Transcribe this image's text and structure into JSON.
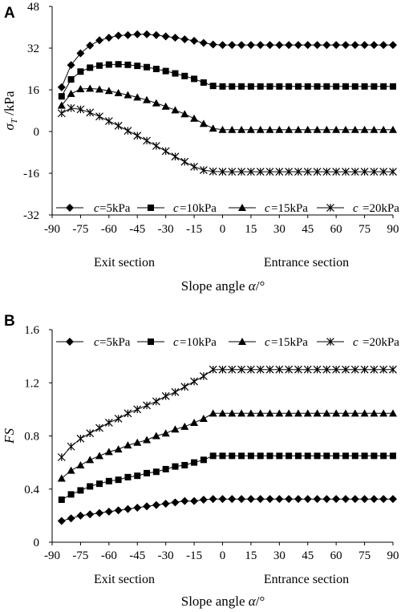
{
  "chart_data": [
    {
      "type": "line",
      "panel": "A",
      "ylabel_symbol": "σ",
      "ylabel_subscript": "T",
      "ylabel_unit": " /kPa",
      "xlim": [
        -90,
        90
      ],
      "ylim": [
        -32,
        48
      ],
      "yticks": [
        48,
        32,
        16,
        0,
        -16,
        -32
      ],
      "xticks": [
        -90,
        -75,
        -60,
        -45,
        -30,
        -15,
        0,
        15,
        30,
        45,
        60,
        75,
        90
      ],
      "section_labels": [
        "Exit section",
        "Entrance section"
      ],
      "xlabel_text": "Slope angle ",
      "xlabel_symbol": "α",
      "xlabel_unit": "/°",
      "legend_position": "bottom",
      "x": [
        -85,
        -80,
        -75,
        -70,
        -65,
        -60,
        -55,
        -50,
        -45,
        -40,
        -35,
        -30,
        -25,
        -20,
        -15,
        -10,
        -5,
        0,
        5,
        10,
        15,
        20,
        25,
        30,
        35,
        40,
        45,
        50,
        55,
        60,
        65,
        70,
        75,
        80,
        85,
        90
      ],
      "series": [
        {
          "prefix": "c",
          "name": "=5kPa",
          "marker": "diamond",
          "values": [
            17,
            25.5,
            30,
            33,
            35,
            36,
            36.8,
            37,
            37.3,
            37.3,
            37,
            36.5,
            36,
            35.4,
            34.8,
            34,
            33.4,
            33.2,
            33.2,
            33.2,
            33.2,
            33.2,
            33.2,
            33.2,
            33.2,
            33.2,
            33.2,
            33.2,
            33.2,
            33.2,
            33.2,
            33.2,
            33.2,
            33.2,
            33.2,
            33.2
          ]
        },
        {
          "prefix": "c",
          "name": "=10kPa",
          "marker": "square",
          "values": [
            13.5,
            20,
            23,
            24.5,
            25.3,
            25.7,
            25.8,
            25.6,
            25.2,
            24.7,
            24,
            23.2,
            22.3,
            21.3,
            20.2,
            18.8,
            17.5,
            17.3,
            17.3,
            17.3,
            17.3,
            17.3,
            17.3,
            17.3,
            17.3,
            17.3,
            17.3,
            17.3,
            17.3,
            17.3,
            17.3,
            17.3,
            17.3,
            17.3,
            17.3,
            17.3
          ]
        },
        {
          "prefix": "c",
          "name": "=15kPa",
          "marker": "triangle",
          "values": [
            10,
            14.5,
            16.3,
            16.5,
            16.2,
            15.6,
            14.8,
            14,
            13.1,
            12.1,
            10.9,
            9.6,
            8.2,
            6.7,
            5,
            3,
            1.2,
            0.7,
            0.7,
            0.7,
            0.7,
            0.7,
            0.7,
            0.7,
            0.7,
            0.7,
            0.7,
            0.7,
            0.7,
            0.7,
            0.7,
            0.7,
            0.7,
            0.7,
            0.7,
            0.7
          ]
        },
        {
          "prefix": "c",
          "name": "=20kPa",
          "marker": "asterisk",
          "values": [
            7,
            9,
            8.5,
            7.3,
            5.8,
            4,
            2.2,
            0.3,
            -1.6,
            -3.5,
            -5.5,
            -7.5,
            -9.6,
            -11.6,
            -13.5,
            -14.8,
            -15.3,
            -15.4,
            -15.4,
            -15.4,
            -15.4,
            -15.4,
            -15.4,
            -15.4,
            -15.4,
            -15.4,
            -15.4,
            -15.4,
            -15.4,
            -15.4,
            -15.4,
            -15.4,
            -15.4,
            -15.4,
            -15.4,
            -15.4
          ]
        }
      ]
    },
    {
      "type": "line",
      "panel": "B",
      "ylabel_symbol": "FS",
      "xlim": [
        -90,
        90
      ],
      "ylim": [
        0,
        1.6
      ],
      "yticks": [
        "1.6",
        "1.2",
        "0.8",
        "0.4",
        "0"
      ],
      "xticks": [
        -90,
        -75,
        -60,
        -45,
        -30,
        -15,
        0,
        15,
        30,
        45,
        60,
        75,
        90
      ],
      "section_labels": [
        "Exit section",
        "Entrance section"
      ],
      "xlabel_text": "Slope angle ",
      "xlabel_symbol": "α",
      "xlabel_unit": "/°",
      "legend_position": "top",
      "x": [
        -85,
        -80,
        -75,
        -70,
        -65,
        -60,
        -55,
        -50,
        -45,
        -40,
        -35,
        -30,
        -25,
        -20,
        -15,
        -10,
        -5,
        0,
        5,
        10,
        15,
        20,
        25,
        30,
        35,
        40,
        45,
        50,
        55,
        60,
        65,
        70,
        75,
        80,
        85,
        90
      ],
      "series": [
        {
          "prefix": "c",
          "name": "=5kPa",
          "marker": "diamond",
          "values": [
            0.16,
            0.18,
            0.2,
            0.21,
            0.22,
            0.23,
            0.24,
            0.25,
            0.26,
            0.27,
            0.28,
            0.29,
            0.3,
            0.31,
            0.31,
            0.32,
            0.325,
            0.325,
            0.325,
            0.325,
            0.325,
            0.325,
            0.325,
            0.325,
            0.325,
            0.325,
            0.325,
            0.325,
            0.325,
            0.325,
            0.325,
            0.325,
            0.325,
            0.325,
            0.325,
            0.325
          ]
        },
        {
          "prefix": "c",
          "name": "=10kPa",
          "marker": "square",
          "values": [
            0.32,
            0.36,
            0.39,
            0.42,
            0.44,
            0.46,
            0.47,
            0.49,
            0.5,
            0.52,
            0.53,
            0.55,
            0.57,
            0.58,
            0.6,
            0.62,
            0.65,
            0.65,
            0.65,
            0.65,
            0.65,
            0.65,
            0.65,
            0.65,
            0.65,
            0.65,
            0.65,
            0.65,
            0.65,
            0.65,
            0.65,
            0.65,
            0.65,
            0.65,
            0.65,
            0.65
          ]
        },
        {
          "prefix": "c",
          "name": "=15kPa",
          "marker": "triangle",
          "values": [
            0.48,
            0.54,
            0.58,
            0.62,
            0.65,
            0.68,
            0.7,
            0.73,
            0.75,
            0.77,
            0.8,
            0.82,
            0.85,
            0.87,
            0.9,
            0.93,
            0.97,
            0.97,
            0.97,
            0.97,
            0.97,
            0.97,
            0.97,
            0.97,
            0.97,
            0.97,
            0.97,
            0.97,
            0.97,
            0.97,
            0.97,
            0.97,
            0.97,
            0.97,
            0.97,
            0.97
          ]
        },
        {
          "prefix": "c",
          "name": "=20kPa",
          "marker": "asterisk",
          "values": [
            0.64,
            0.72,
            0.78,
            0.82,
            0.86,
            0.9,
            0.93,
            0.97,
            1.0,
            1.03,
            1.06,
            1.1,
            1.13,
            1.17,
            1.21,
            1.25,
            1.3,
            1.3,
            1.3,
            1.3,
            1.3,
            1.3,
            1.3,
            1.3,
            1.3,
            1.3,
            1.3,
            1.3,
            1.3,
            1.3,
            1.3,
            1.3,
            1.3,
            1.3,
            1.3,
            1.3
          ]
        }
      ]
    }
  ]
}
